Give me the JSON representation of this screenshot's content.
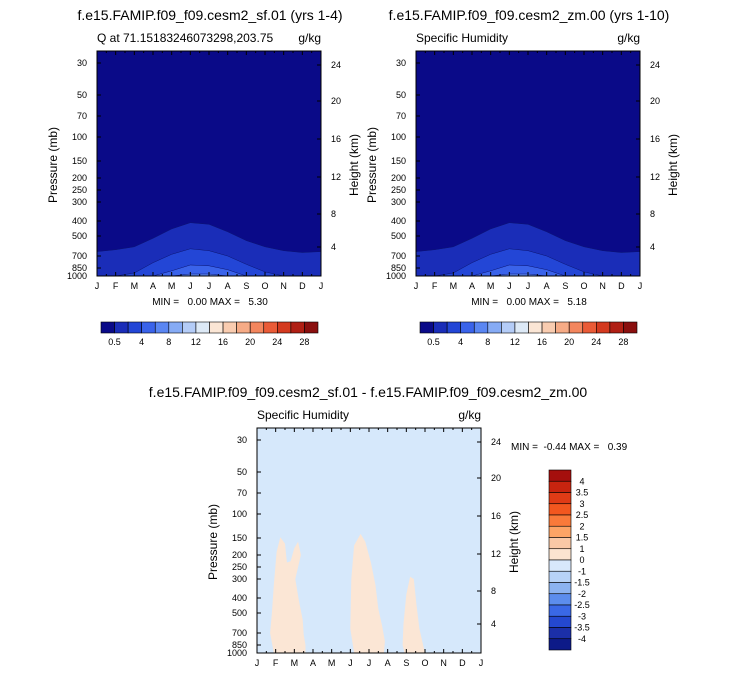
{
  "chart_data": [
    {
      "type": "contour",
      "title": "f.e15.FAMIP.f09_f09.cesm2_sf.01 (yrs 1-4)",
      "subtitle_left": "Q at 71.15183246073298,203.75",
      "subtitle_right": "g/kg",
      "xlabel": "",
      "ylabel": "Pressure (mb)",
      "ylabel_right": "Height (km)",
      "x_ticks": [
        "J",
        "F",
        "M",
        "A",
        "M",
        "J",
        "J",
        "A",
        "S",
        "O",
        "N",
        "D",
        "J"
      ],
      "y_ticks": [
        "30",
        "50",
        "70",
        "100",
        "150",
        "200",
        "250",
        "300",
        "400",
        "500",
        "700",
        "850",
        "1000"
      ],
      "y_ticks_right": [
        "24",
        "20",
        "16",
        "12",
        "8",
        "4"
      ],
      "ylim_mb": [
        1000,
        25
      ],
      "y_scale": "log",
      "stats": "MIN =   0.00 MAX =   5.30",
      "min": 0.0,
      "max": 5.3,
      "colorbar_labels": [
        "0.5",
        "4",
        "8",
        "12",
        "16",
        "20",
        "24",
        "28"
      ],
      "colorbar_colors": [
        "#0a0a88",
        "#1a2db8",
        "#2346d6",
        "#3a63ea",
        "#5a86f2",
        "#86abf5",
        "#b4ccf7",
        "#dde9f6",
        "#fbe6d5",
        "#f9ccb0",
        "#f6ab86",
        "#f3865e",
        "#ea5b37",
        "#d43a1f",
        "#b01f14",
        "#8a0f0e"
      ],
      "contour_level_profiles": [
        {
          "level": "0.5",
          "pressure_mb_by_month": [
            650,
            630,
            600,
            520,
            450,
            410,
            420,
            470,
            540,
            600,
            640,
            660,
            650
          ]
        },
        {
          "level": "1",
          "pressure_mb_by_month": [
            1000,
            1000,
            940,
            780,
            680,
            620,
            640,
            700,
            800,
            920,
            1000,
            1000,
            1000
          ]
        },
        {
          "level": "2",
          "pressure_mb_by_month": [
            1000,
            1000,
            1000,
            1000,
            900,
            810,
            820,
            880,
            1000,
            1000,
            1000,
            1000,
            1000
          ]
        },
        {
          "level": "3",
          "pressure_mb_by_month": [
            1000,
            1000,
            1000,
            1000,
            1000,
            960,
            960,
            1000,
            1000,
            1000,
            1000,
            1000,
            1000
          ]
        }
      ]
    },
    {
      "type": "contour",
      "title": "f.e15.FAMIP.f09_f09.cesm2_zm.00 (yrs 1-10)",
      "subtitle_left": "Specific Humidity",
      "subtitle_right": "g/kg",
      "xlabel": "",
      "ylabel": "Pressure (mb)",
      "ylabel_right": "Height (km)",
      "x_ticks": [
        "J",
        "F",
        "M",
        "A",
        "M",
        "J",
        "J",
        "A",
        "S",
        "O",
        "N",
        "D",
        "J"
      ],
      "y_ticks": [
        "30",
        "50",
        "70",
        "100",
        "150",
        "200",
        "250",
        "300",
        "400",
        "500",
        "700",
        "850",
        "1000"
      ],
      "y_ticks_right": [
        "24",
        "20",
        "16",
        "12",
        "8",
        "4"
      ],
      "ylim_mb": [
        1000,
        25
      ],
      "y_scale": "log",
      "stats": "MIN =   0.00 MAX =   5.18",
      "min": 0.0,
      "max": 5.18,
      "colorbar_labels": [
        "0.5",
        "4",
        "8",
        "12",
        "16",
        "20",
        "24",
        "28"
      ],
      "colorbar_colors": [
        "#0a0a88",
        "#1a2db8",
        "#2346d6",
        "#3a63ea",
        "#5a86f2",
        "#86abf5",
        "#b4ccf7",
        "#dde9f6",
        "#fbe6d5",
        "#f9ccb0",
        "#f6ab86",
        "#f3865e",
        "#ea5b37",
        "#d43a1f",
        "#b01f14",
        "#8a0f0e"
      ],
      "contour_level_profiles": [
        {
          "level": "0.5",
          "pressure_mb_by_month": [
            650,
            630,
            600,
            520,
            450,
            410,
            420,
            470,
            540,
            600,
            640,
            660,
            650
          ]
        },
        {
          "level": "1",
          "pressure_mb_by_month": [
            1000,
            1000,
            940,
            780,
            680,
            620,
            640,
            700,
            800,
            920,
            1000,
            1000,
            1000
          ]
        },
        {
          "level": "2",
          "pressure_mb_by_month": [
            1000,
            1000,
            1000,
            1000,
            900,
            810,
            820,
            880,
            1000,
            1000,
            1000,
            1000,
            1000
          ]
        },
        {
          "level": "3",
          "pressure_mb_by_month": [
            1000,
            1000,
            1000,
            1000,
            1000,
            960,
            960,
            1000,
            1000,
            1000,
            1000,
            1000,
            1000
          ]
        }
      ]
    },
    {
      "type": "contour",
      "title": "f.e15.FAMIP.f09_f09.cesm2_sf.01 - f.e15.FAMIP.f09_f09.cesm2_zm.00",
      "subtitle_left": "Specific Humidity",
      "subtitle_right": "g/kg",
      "xlabel": "",
      "ylabel": "Pressure (mb)",
      "ylabel_right": "Height (km)",
      "x_ticks": [
        "J",
        "F",
        "M",
        "A",
        "M",
        "J",
        "J",
        "A",
        "S",
        "O",
        "N",
        "D",
        "J"
      ],
      "y_ticks": [
        "30",
        "50",
        "70",
        "100",
        "150",
        "200",
        "250",
        "300",
        "400",
        "500",
        "700",
        "850",
        "1000"
      ],
      "y_ticks_right": [
        "24",
        "20",
        "16",
        "12",
        "8",
        "4"
      ],
      "ylim_mb": [
        1000,
        25
      ],
      "y_scale": "log",
      "stats": "MIN =  -0.44 MAX =   0.39",
      "min": -0.44,
      "max": 0.39,
      "background_color": "#d6e8fb",
      "anomaly_color": "#fbe6d5",
      "colorbar_labels": [
        "4",
        "3.5",
        "3",
        "2.5",
        "2",
        "1.5",
        "1",
        "0",
        "-1",
        "-1.5",
        "-2",
        "-2.5",
        "-3",
        "-3.5",
        "-4"
      ],
      "colorbar_colors": [
        "#a50f0d",
        "#c8240f",
        "#e03b16",
        "#f2571f",
        "#f97a3a",
        "#fca466",
        "#f9c8a6",
        "#fce4d0",
        "#d8e8fb",
        "#b7d2f7",
        "#8cb3f1",
        "#5c8ded",
        "#3a68e6",
        "#2448d0",
        "#1b2fa8",
        "#0d1a88"
      ],
      "positive_regions": [
        {
          "name": "feb-apr",
          "points_month_mb": [
            [
              0.7,
              700
            ],
            [
              0.8,
              500
            ],
            [
              0.9,
              330
            ],
            [
              1.05,
              190
            ],
            [
              1.25,
              148
            ],
            [
              1.5,
              165
            ],
            [
              1.6,
              230
            ],
            [
              1.8,
              225
            ],
            [
              2.0,
              178
            ],
            [
              2.2,
              160
            ],
            [
              2.35,
              200
            ],
            [
              2.2,
              250
            ],
            [
              2.05,
              300
            ],
            [
              2.25,
              420
            ],
            [
              2.45,
              560
            ],
            [
              2.5,
              720
            ],
            [
              2.6,
              850
            ],
            [
              2.6,
              1000
            ],
            [
              0.9,
              1000
            ]
          ]
        },
        {
          "name": "jul-sep",
          "points_month_mb": [
            [
              5.2,
              1000
            ],
            [
              5.0,
              650
            ],
            [
              5.05,
              300
            ],
            [
              5.2,
              170
            ],
            [
              5.55,
              140
            ],
            [
              5.8,
              160
            ],
            [
              6.1,
              230
            ],
            [
              6.35,
              330
            ],
            [
              6.5,
              470
            ],
            [
              6.7,
              620
            ],
            [
              6.85,
              800
            ],
            [
              6.8,
              1000
            ]
          ]
        },
        {
          "name": "oct-dec",
          "points_month_mb": [
            [
              7.9,
              1000
            ],
            [
              7.8,
              850
            ],
            [
              7.85,
              600
            ],
            [
              8.0,
              380
            ],
            [
              8.2,
              290
            ],
            [
              8.4,
              300
            ],
            [
              8.55,
              450
            ],
            [
              8.7,
              650
            ],
            [
              8.9,
              850
            ],
            [
              9.0,
              1000
            ]
          ]
        }
      ]
    }
  ]
}
